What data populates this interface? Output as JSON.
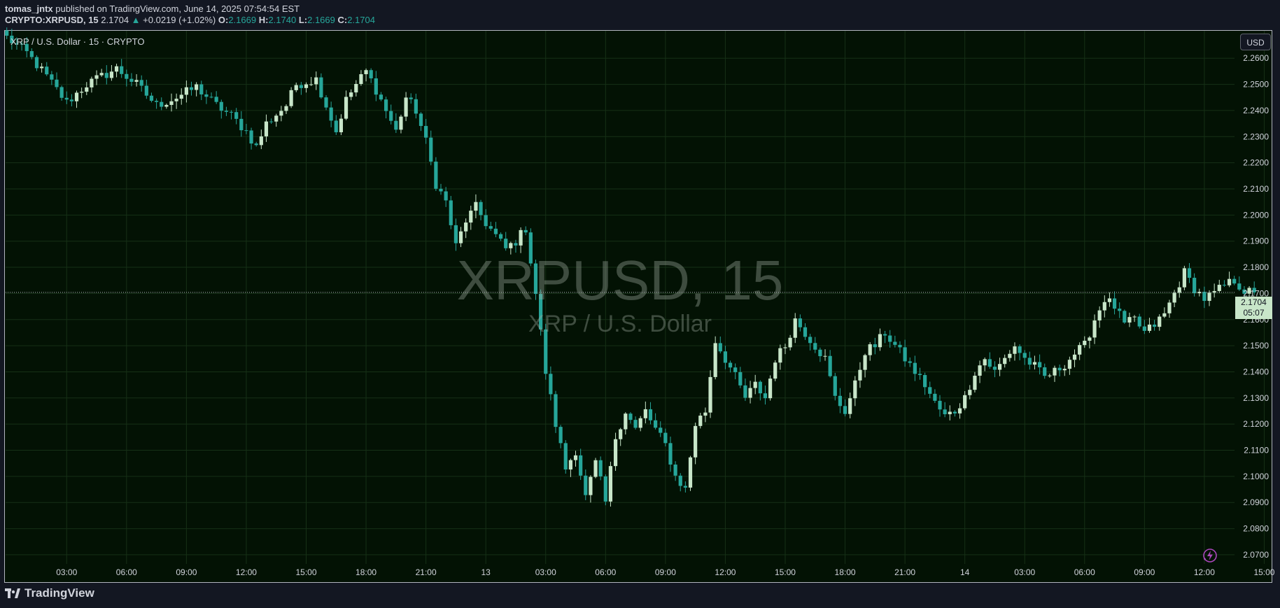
{
  "header": {
    "author": "tomas_jntx",
    "published_text": "published on TradingView.com, June 14, 2025 07:54:54 EST",
    "symbol": "CRYPTO:XRPUSD, 15",
    "last": "2.1704",
    "change": "+0.0219 (+1.02%)",
    "o_label": "O:",
    "o_val": "2.1669",
    "h_label": "H:",
    "h_val": "2.1740",
    "l_label": "L:",
    "l_val": "2.1669",
    "c_label": "C:",
    "c_val": "2.1704",
    "up_arrow": "▲"
  },
  "legend_title": "XRP / U.S. Dollar · 15 · CRYPTO",
  "currency_button": "USD",
  "watermark": {
    "symbol": "XRPUSD, 15",
    "name": "XRP / U.S. Dollar"
  },
  "price_tag": {
    "price": "2.1704",
    "countdown": "05:07"
  },
  "brand": "TradingView",
  "icons": {
    "flash": "lightning-icon",
    "logo": "tradingview-logo-icon"
  },
  "colors": {
    "background": "#031204",
    "up": "#c8e6c9",
    "down": "#26a69a",
    "grid": "#163016"
  },
  "chart_data": {
    "type": "candlestick",
    "y_axis_labels": [
      "2.2600",
      "2.2500",
      "2.2400",
      "2.2300",
      "2.2200",
      "2.2100",
      "2.2000",
      "2.1900",
      "2.1800",
      "2.1700",
      "2.1600",
      "2.1500",
      "2.1400",
      "2.1300",
      "2.1200",
      "2.1100",
      "2.1000",
      "2.0900",
      "2.0800",
      "2.0700"
    ],
    "ylim": [
      2.0665,
      2.2705
    ],
    "x_axis_labels": [
      "03:00",
      "06:00",
      "09:00",
      "12:00",
      "15:00",
      "18:00",
      "21:00",
      "13",
      "03:00",
      "06:00",
      "09:00",
      "12:00",
      "15:00",
      "18:00",
      "21:00",
      "14",
      "03:00",
      "06:00",
      "09:00",
      "12:00",
      "15:00"
    ],
    "x_label_index": [
      12,
      24,
      36,
      48,
      60,
      72,
      84,
      96,
      108,
      120,
      132,
      144,
      156,
      168,
      180,
      192,
      204,
      216,
      228,
      240,
      252
    ],
    "last_price": 2.1704,
    "waypoints": [
      [
        0,
        2.268
      ],
      [
        4,
        2.262
      ],
      [
        8,
        2.253
      ],
      [
        12,
        2.243
      ],
      [
        16,
        2.25
      ],
      [
        22,
        2.256
      ],
      [
        26,
        2.25
      ],
      [
        30,
        2.242
      ],
      [
        34,
        2.245
      ],
      [
        38,
        2.249
      ],
      [
        42,
        2.242
      ],
      [
        45,
        2.238
      ],
      [
        48,
        2.232
      ],
      [
        50,
        2.226
      ],
      [
        52,
        2.235
      ],
      [
        56,
        2.242
      ],
      [
        58,
        2.25
      ],
      [
        62,
        2.252
      ],
      [
        64,
        2.242
      ],
      [
        66,
        2.232
      ],
      [
        68,
        2.244
      ],
      [
        70,
        2.25
      ],
      [
        72,
        2.255
      ],
      [
        74,
        2.248
      ],
      [
        76,
        2.24
      ],
      [
        78,
        2.232
      ],
      [
        80,
        2.245
      ],
      [
        82,
        2.24
      ],
      [
        84,
        2.228
      ],
      [
        86,
        2.212
      ],
      [
        88,
        2.205
      ],
      [
        90,
        2.188
      ],
      [
        92,
        2.198
      ],
      [
        94,
        2.203
      ],
      [
        96,
        2.197
      ],
      [
        98,
        2.192
      ],
      [
        100,
        2.187
      ],
      [
        102,
        2.19
      ],
      [
        104,
        2.195
      ],
      [
        106,
        2.17
      ],
      [
        108,
        2.14
      ],
      [
        110,
        2.12
      ],
      [
        112,
        2.103
      ],
      [
        114,
        2.11
      ],
      [
        116,
        2.092
      ],
      [
        118,
        2.105
      ],
      [
        119,
        2.098
      ],
      [
        120,
        2.09
      ],
      [
        122,
        2.115
      ],
      [
        124,
        2.125
      ],
      [
        126,
        2.118
      ],
      [
        128,
        2.125
      ],
      [
        130,
        2.118
      ],
      [
        132,
        2.112
      ],
      [
        134,
        2.1
      ],
      [
        136,
        2.095
      ],
      [
        138,
        2.12
      ],
      [
        140,
        2.125
      ],
      [
        142,
        2.152
      ],
      [
        144,
        2.145
      ],
      [
        146,
        2.138
      ],
      [
        148,
        2.13
      ],
      [
        150,
        2.135
      ],
      [
        152,
        2.13
      ],
      [
        154,
        2.145
      ],
      [
        156,
        2.15
      ],
      [
        158,
        2.16
      ],
      [
        160,
        2.155
      ],
      [
        162,
        2.15
      ],
      [
        164,
        2.145
      ],
      [
        166,
        2.13
      ],
      [
        168,
        2.125
      ],
      [
        170,
        2.135
      ],
      [
        172,
        2.148
      ],
      [
        174,
        2.15
      ],
      [
        176,
        2.155
      ],
      [
        178,
        2.15
      ],
      [
        180,
        2.145
      ],
      [
        182,
        2.14
      ],
      [
        184,
        2.135
      ],
      [
        186,
        2.128
      ],
      [
        188,
        2.123
      ],
      [
        190,
        2.125
      ],
      [
        192,
        2.13
      ],
      [
        194,
        2.14
      ],
      [
        196,
        2.145
      ],
      [
        198,
        2.14
      ],
      [
        200,
        2.145
      ],
      [
        202,
        2.15
      ],
      [
        204,
        2.145
      ],
      [
        206,
        2.142
      ],
      [
        208,
        2.138
      ],
      [
        210,
        2.14
      ],
      [
        212,
        2.143
      ],
      [
        214,
        2.147
      ],
      [
        216,
        2.15
      ],
      [
        218,
        2.16
      ],
      [
        220,
        2.168
      ],
      [
        222,
        2.165
      ],
      [
        224,
        2.158
      ],
      [
        226,
        2.16
      ],
      [
        228,
        2.155
      ],
      [
        230,
        2.158
      ],
      [
        232,
        2.162
      ],
      [
        234,
        2.17
      ],
      [
        236,
        2.178
      ],
      [
        238,
        2.172
      ],
      [
        240,
        2.168
      ],
      [
        242,
        2.17
      ],
      [
        244,
        2.173
      ],
      [
        246,
        2.175
      ],
      [
        248,
        2.171
      ],
      [
        250,
        2.17
      ]
    ]
  }
}
